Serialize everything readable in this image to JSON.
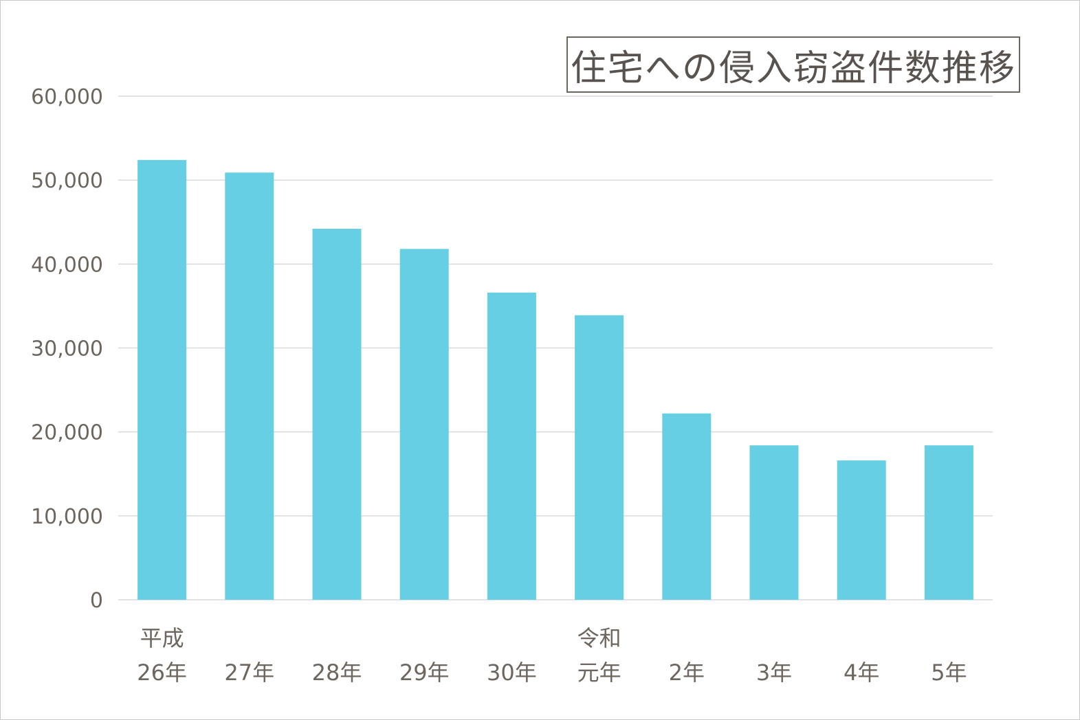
{
  "chart_data": {
    "type": "bar",
    "title": "住宅への侵入窃盗件数推移",
    "categories": [
      [
        "平成",
        "26年"
      ],
      [
        "27年"
      ],
      [
        "28年"
      ],
      [
        "29年"
      ],
      [
        "30年"
      ],
      [
        "令和",
        "元年"
      ],
      [
        "2年"
      ],
      [
        "3年"
      ],
      [
        "4年"
      ],
      [
        "5年"
      ]
    ],
    "values": [
      52400,
      50900,
      44200,
      41800,
      36600,
      33900,
      22200,
      18400,
      16600,
      18400
    ],
    "ylim": [
      0,
      60000
    ],
    "yticks": [
      0,
      10000,
      20000,
      30000,
      40000,
      50000,
      60000
    ],
    "ytick_labels": [
      "0",
      "10,000",
      "20,000",
      "30,000",
      "40,000",
      "50,000",
      "60,000"
    ],
    "grid": true,
    "bar_color": "#66cfe3",
    "grid_color": "#d9d9d9",
    "text_color": "#6d665f"
  }
}
